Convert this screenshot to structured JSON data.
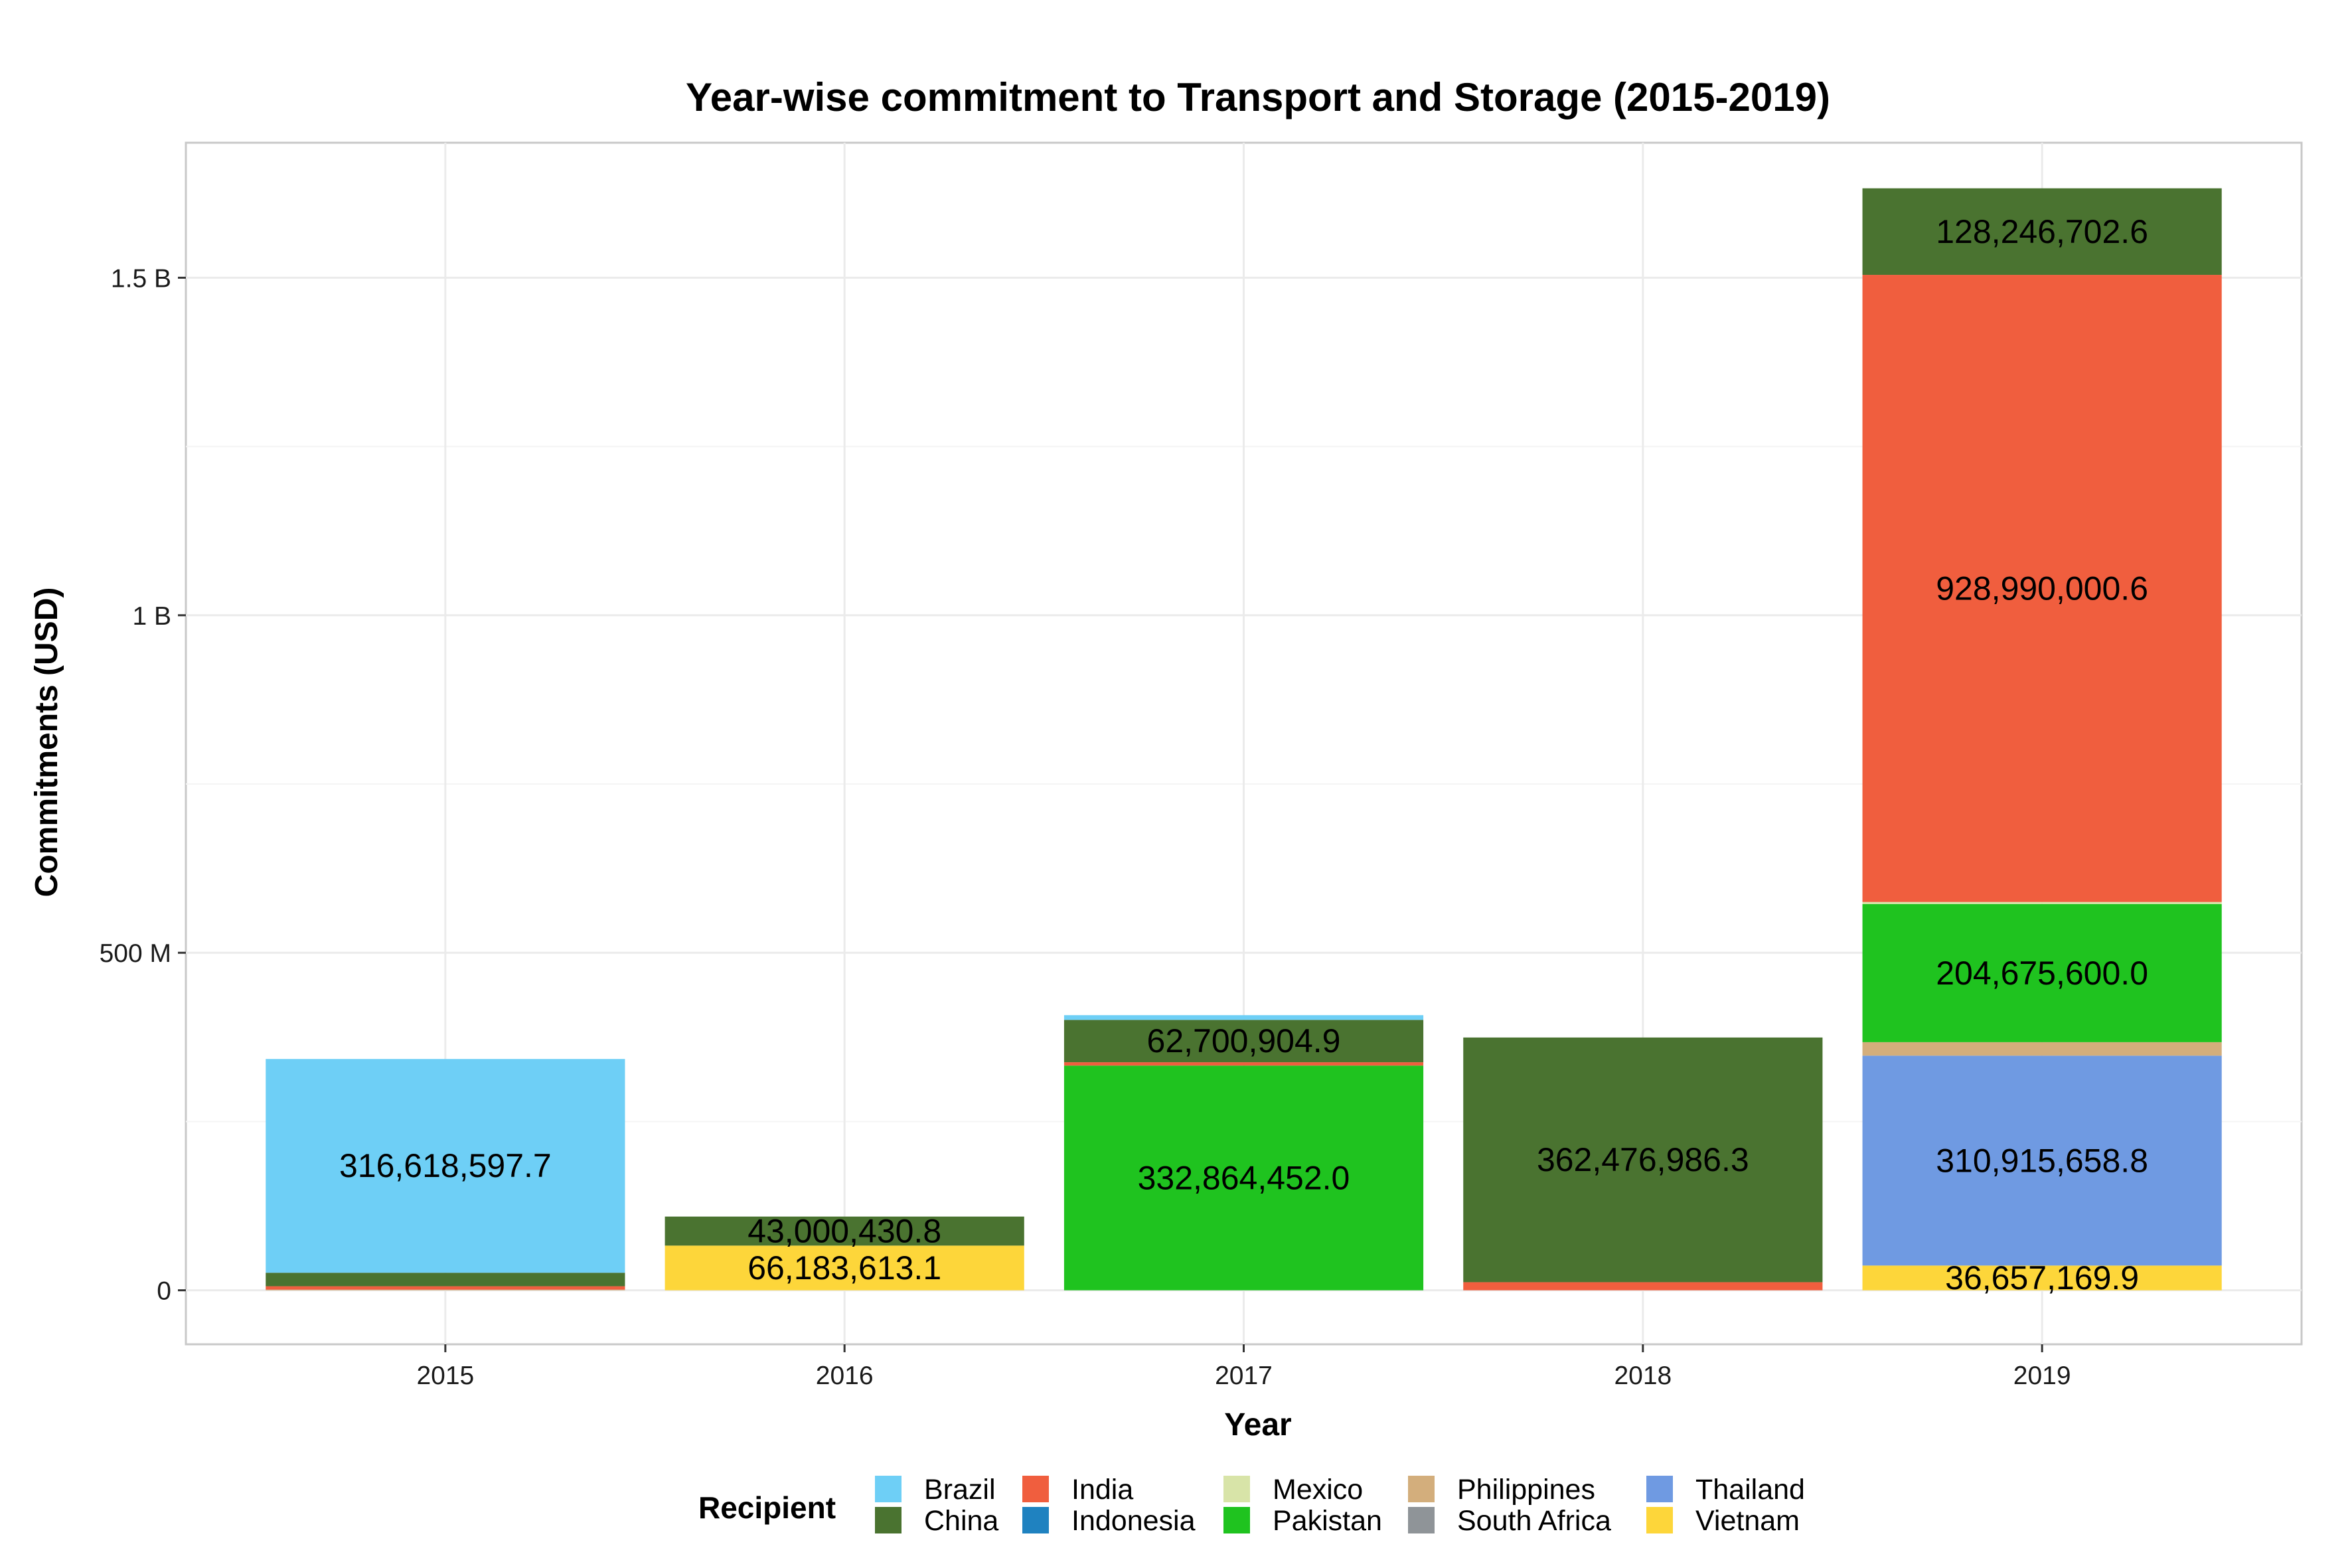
{
  "chart_data": {
    "type": "bar",
    "stacked": true,
    "title": "Year-wise commitment to Transport and Storage (2015-2019)",
    "xlabel": "Year",
    "ylabel": "Commitments (USD)",
    "categories": [
      "2015",
      "2016",
      "2017",
      "2018",
      "2019"
    ],
    "ylim": [
      -80000000,
      1700000000
    ],
    "yticks": [
      {
        "value": 0,
        "label": "0"
      },
      {
        "value": 500000000,
        "label": "500 M"
      },
      {
        "value": 1000000000,
        "label": "1 B"
      },
      {
        "value": 1500000000,
        "label": "1.5 B"
      }
    ],
    "grid": true,
    "legend": {
      "title": "Recipient",
      "position": "bottom"
    },
    "series": [
      {
        "name": "Brazil",
        "color": "#6ecff6",
        "values": [
          316618597.7,
          0,
          7000000,
          0,
          0
        ]
      },
      {
        "name": "China",
        "color": "#4a7330",
        "values": [
          20000000,
          43000430.8,
          62700904.9,
          362476986.3,
          128246702.6
        ]
      },
      {
        "name": "India",
        "color": "#f05e3e",
        "values": [
          5000000,
          0,
          5000000,
          12000000,
          928990000.6
        ]
      },
      {
        "name": "Indonesia",
        "color": "#1f82c0",
        "values": [
          0,
          0,
          0,
          0,
          0
        ]
      },
      {
        "name": "Mexico",
        "color": "#d8e4a8",
        "values": [
          0,
          0,
          0,
          0,
          3000000
        ]
      },
      {
        "name": "Pakistan",
        "color": "#1fc31f",
        "values": [
          0,
          0,
          332864452.0,
          0,
          204675600.0
        ]
      },
      {
        "name": "Philippines",
        "color": "#d3ae7c",
        "values": [
          1000000,
          0,
          0,
          0,
          20000000
        ]
      },
      {
        "name": "South Africa",
        "color": "#8f9498",
        "values": [
          0,
          0,
          0,
          0,
          0
        ]
      },
      {
        "name": "Thailand",
        "color": "#6f9ae2",
        "values": [
          0,
          0,
          0,
          0,
          310915658.8
        ]
      },
      {
        "name": "Vietnam",
        "color": "#fdd63a",
        "values": [
          0,
          66183613.1,
          0,
          0,
          36657169.9
        ]
      }
    ],
    "data_labels": [
      {
        "category": "2015",
        "series": "Brazil",
        "text": "316,618,597.7"
      },
      {
        "category": "2016",
        "series": "China",
        "text": "43,000,430.8"
      },
      {
        "category": "2016",
        "series": "Vietnam",
        "text": "66,183,613.1"
      },
      {
        "category": "2017",
        "series": "China",
        "text": "62,700,904.9"
      },
      {
        "category": "2017",
        "series": "Pakistan",
        "text": "332,864,452.0"
      },
      {
        "category": "2018",
        "series": "China",
        "text": "362,476,986.3"
      },
      {
        "category": "2019",
        "series": "China",
        "text": "128,246,702.6"
      },
      {
        "category": "2019",
        "series": "India",
        "text": "928,990,000.6"
      },
      {
        "category": "2019",
        "series": "Pakistan",
        "text": "204,675,600.0"
      },
      {
        "category": "2019",
        "series": "Thailand",
        "text": "310,915,658.8"
      },
      {
        "category": "2019",
        "series": "Vietnam",
        "text": "36,657,169.9"
      }
    ]
  }
}
